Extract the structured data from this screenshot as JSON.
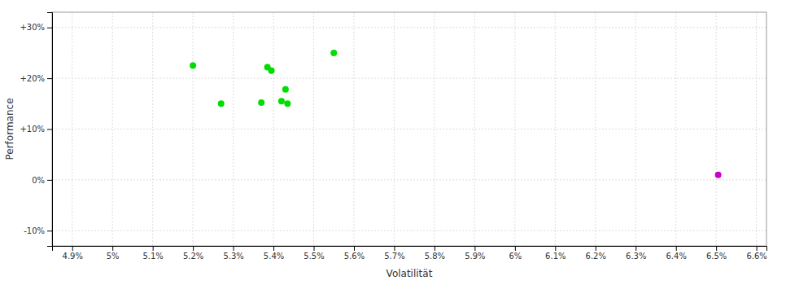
{
  "chart_data": {
    "type": "scatter",
    "xlabel": "Volatilität",
    "ylabel": "Performance",
    "xlim": [
      4.85,
      6.625
    ],
    "ylim": [
      -13,
      33
    ],
    "xticks": [
      {
        "value": 4.9,
        "label": "4.9%"
      },
      {
        "value": 5.0,
        "label": "5%"
      },
      {
        "value": 5.1,
        "label": "5.1%"
      },
      {
        "value": 5.2,
        "label": "5.2%"
      },
      {
        "value": 5.3,
        "label": "5.3%"
      },
      {
        "value": 5.4,
        "label": "5.4%"
      },
      {
        "value": 5.5,
        "label": "5.5%"
      },
      {
        "value": 5.6,
        "label": "5.6%"
      },
      {
        "value": 5.7,
        "label": "5.7%"
      },
      {
        "value": 5.8,
        "label": "5.8%"
      },
      {
        "value": 5.9,
        "label": "5.9%"
      },
      {
        "value": 6.0,
        "label": "6%"
      },
      {
        "value": 6.1,
        "label": "6.1%"
      },
      {
        "value": 6.2,
        "label": "6.2%"
      },
      {
        "value": 6.3,
        "label": "6.3%"
      },
      {
        "value": 6.4,
        "label": "6.4%"
      },
      {
        "value": 6.5,
        "label": "6.5%"
      },
      {
        "value": 6.6,
        "label": "6.6%"
      }
    ],
    "yticks": [
      {
        "value": -10,
        "label": "-10%"
      },
      {
        "value": 0,
        "label": "0%"
      },
      {
        "value": 10,
        "label": "+10%"
      },
      {
        "value": 20,
        "label": "+20%"
      },
      {
        "value": 30,
        "label": "+30%"
      }
    ],
    "grid": true,
    "series": [
      {
        "color": "#00dd00",
        "x": [
          5.2,
          5.27,
          5.385,
          5.395,
          5.43,
          5.42,
          5.435,
          5.37,
          5.55
        ],
        "values": [
          22.5,
          15.0,
          22.2,
          21.5,
          17.8,
          15.5,
          15.0,
          15.2,
          25.0
        ]
      },
      {
        "color": "#cc00cc",
        "x": [
          6.505
        ],
        "values": [
          1.0
        ]
      }
    ]
  }
}
